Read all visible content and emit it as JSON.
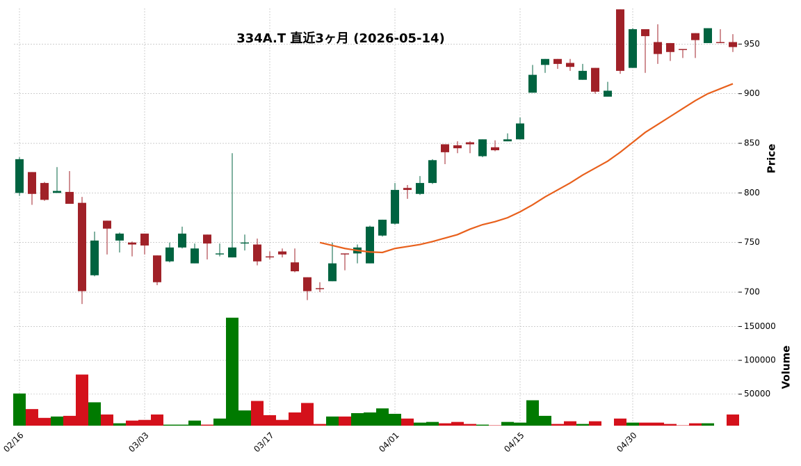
{
  "chart_data": [
    {
      "type": "candlestick",
      "title": "334A.T  直近3ヶ月  (2026-05-14)",
      "ylabel": "Price",
      "up_color": "#006340",
      "down_color": "#a02128",
      "open": [
        800,
        821,
        810,
        800,
        801,
        790,
        717,
        772,
        752,
        750,
        759,
        737,
        731,
        745,
        729,
        758,
        738,
        735,
        749,
        748,
        736,
        741,
        730,
        715,
        704,
        711,
        739,
        739,
        729,
        757,
        769,
        805,
        799,
        810,
        849,
        848,
        851,
        837,
        846,
        852,
        854,
        901,
        929,
        935,
        931,
        914,
        926,
        897,
        985,
        926,
        965,
        952,
        951,
        945,
        961,
        951,
        952,
        952
      ],
      "high": [
        836,
        821,
        811,
        826,
        822,
        796,
        761,
        772,
        760,
        751,
        759,
        737,
        750,
        766,
        749,
        758,
        749,
        840,
        758,
        754,
        741,
        744,
        744,
        715,
        710,
        750,
        739,
        748,
        767,
        773,
        810,
        808,
        817,
        834,
        849,
        852,
        852,
        854,
        853,
        860,
        876,
        929,
        935,
        935,
        935,
        930,
        926,
        912,
        985,
        966,
        965,
        970,
        951,
        945,
        961,
        966,
        965,
        960
      ],
      "low": [
        797,
        788,
        792,
        800,
        789,
        688,
        716,
        738,
        740,
        736,
        738,
        707,
        730,
        744,
        729,
        733,
        736,
        735,
        742,
        727,
        733,
        735,
        720,
        692,
        700,
        711,
        722,
        729,
        729,
        756,
        768,
        794,
        798,
        809,
        829,
        840,
        840,
        836,
        842,
        852,
        854,
        901,
        921,
        925,
        923,
        914,
        900,
        897,
        920,
        926,
        921,
        930,
        933,
        936,
        936,
        951,
        951,
        942
      ],
      "close": [
        834,
        799,
        793,
        802,
        789,
        701,
        752,
        764,
        759,
        748,
        747,
        710,
        745,
        759,
        744,
        749,
        739,
        745,
        750,
        731,
        735,
        738,
        721,
        701,
        703,
        729,
        738,
        745,
        766,
        773,
        803,
        803,
        810,
        833,
        841,
        845,
        849,
        854,
        843,
        854,
        870,
        919,
        935,
        930,
        927,
        923,
        902,
        903,
        923,
        965,
        958,
        940,
        942,
        944,
        954,
        966,
        951,
        947
      ],
      "ma": {
        "color": "#e8601c",
        "values": [
          null,
          null,
          null,
          null,
          null,
          null,
          null,
          null,
          null,
          null,
          null,
          null,
          null,
          null,
          null,
          null,
          null,
          null,
          null,
          null,
          null,
          null,
          null,
          null,
          750,
          747,
          744,
          742,
          740.5,
          740,
          744,
          746,
          748,
          751,
          754.5,
          758,
          763.5,
          768,
          771,
          775,
          781,
          788,
          796,
          803,
          810,
          818,
          825,
          832,
          841,
          851,
          861,
          869,
          877,
          885,
          893,
          900,
          905,
          910
        ]
      },
      "ylim": [
        686,
        986
      ],
      "yticks": [
        700,
        750,
        800,
        850,
        900,
        950
      ],
      "grid": true
    },
    {
      "type": "bar",
      "ylabel": "Volume",
      "up_color": "#007a00",
      "down_color": "#d4111b",
      "categories": [
        "02/16",
        null,
        null,
        null,
        null,
        null,
        null,
        null,
        null,
        null,
        "03/03",
        null,
        null,
        null,
        null,
        null,
        null,
        null,
        null,
        null,
        "03/17",
        null,
        null,
        null,
        null,
        null,
        null,
        null,
        null,
        null,
        "04/01",
        null,
        null,
        null,
        null,
        null,
        null,
        null,
        null,
        null,
        "04/15",
        null,
        null,
        null,
        null,
        null,
        null,
        null,
        null,
        "04/30",
        null,
        null,
        null,
        null,
        null,
        null,
        null,
        null
      ],
      "values": [
        51000,
        28000,
        15000,
        17000,
        18000,
        79000,
        38000,
        20000,
        7000,
        11000,
        12000,
        20000,
        5000,
        5000,
        11000,
        5000,
        14000,
        163000,
        26000,
        40000,
        19000,
        12000,
        23000,
        37000,
        6000,
        17000,
        17000,
        22000,
        23000,
        29000,
        21000,
        14000,
        8000,
        9000,
        7000,
        9000,
        6000,
        5000,
        4000,
        9000,
        8000,
        41000,
        18000,
        6000,
        10000,
        6000,
        10000,
        3000,
        14000,
        8000,
        8000,
        8000,
        6000,
        4000,
        7000,
        7000,
        3000,
        20000
      ],
      "ylim": [
        3500,
        172000
      ],
      "yticks": [
        50000,
        100000,
        150000
      ],
      "grid": true
    }
  ]
}
